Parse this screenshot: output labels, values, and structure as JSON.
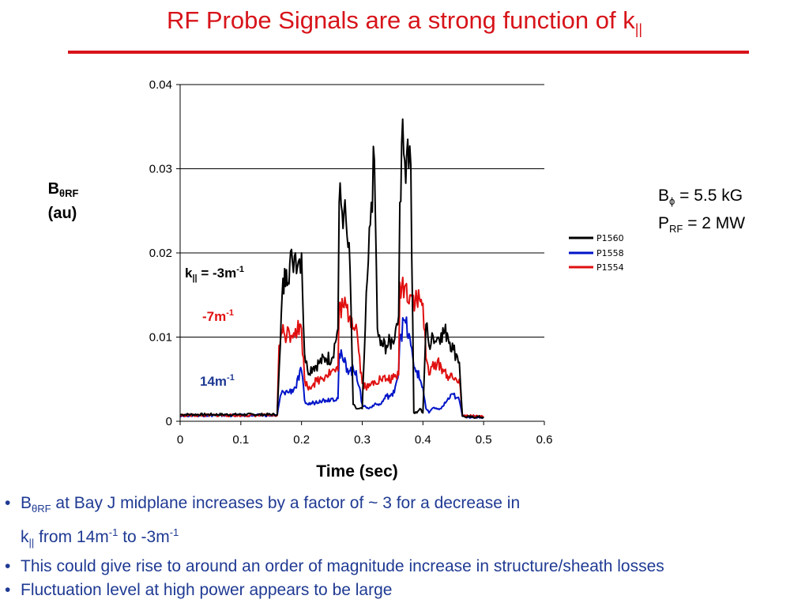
{
  "slide": {
    "title_main": "RF Probe Signals are a strong function of k",
    "title_sub": "||"
  },
  "params": {
    "line1_prefix": "B",
    "line1_sub": "ϕ",
    "line1_suffix": " = 5.5 kG",
    "line2_prefix": "P",
    "line2_sub": "RF",
    "line2_suffix": " = 2 MW"
  },
  "bullets": [
    {
      "b_text": "B",
      "b_sub": "θRF",
      "text1": " at Bay J midplane increases by a factor of ~ 3 for a decrease in",
      "k_text": "k",
      "k_sub": "||",
      "from_text": " from 14m",
      "sup1": "-1",
      "to_text": " to -3m",
      "sup2": "-1"
    },
    {
      "text": "This could give rise to around an order of magnitude increase in structure/sheath losses"
    },
    {
      "text": "Fluctuation level at high power appears to be large"
    }
  ],
  "colors": {
    "title": "#d7141a",
    "bullets": "#1f3a93",
    "P1560": "#000000",
    "P1558": "#0014c8",
    "P1554": "#e01010"
  },
  "chart_data": {
    "type": "line",
    "xlabel": "Time (sec)",
    "ylabel_main": "B",
    "ylabel_sub": "θRF",
    "ylabel_unit": "(au)",
    "xlim": [
      0,
      0.6
    ],
    "ylim": [
      0,
      0.04
    ],
    "xticks": [
      "0",
      "0.1",
      "0.2",
      "0.3",
      "0.4",
      "0.5",
      "0.6"
    ],
    "yticks": [
      "0",
      "0.01",
      "0.02",
      "0.03",
      "0.04"
    ],
    "grid": "horizontal",
    "legend_position": "right",
    "annotations": [
      {
        "text": "k",
        "sub": "||",
        "suffix": " = -3m",
        "sup": "-1",
        "color": "#000000"
      },
      {
        "text": "-7m",
        "sup": "-1",
        "color": "#e01010"
      },
      {
        "text": "14m",
        "sup": "-1",
        "color": "#1f3a93"
      }
    ],
    "series": [
      {
        "name": "P1560",
        "color": "#000000",
        "x": [
          0,
          0.16,
          0.165,
          0.168,
          0.175,
          0.185,
          0.19,
          0.195,
          0.2,
          0.205,
          0.21,
          0.22,
          0.23,
          0.24,
          0.25,
          0.26,
          0.262,
          0.27,
          0.275,
          0.28,
          0.285,
          0.29,
          0.295,
          0.3,
          0.305,
          0.31,
          0.315,
          0.32,
          0.325,
          0.33,
          0.34,
          0.35,
          0.355,
          0.36,
          0.362,
          0.365,
          0.37,
          0.375,
          0.38,
          0.385,
          0.39,
          0.395,
          0.4,
          0.405,
          0.41,
          0.415,
          0.42,
          0.425,
          0.43,
          0.44,
          0.45,
          0.455,
          0.46,
          0.465,
          0.47,
          0.48,
          0.5
        ],
        "y": [
          0.0008,
          0.0008,
          0.009,
          0.015,
          0.018,
          0.019,
          0.02,
          0.019,
          0.02,
          0.008,
          0.006,
          0.0065,
          0.007,
          0.0075,
          0.0075,
          0.011,
          0.026,
          0.025,
          0.022,
          0.018,
          0.002,
          0.0015,
          0.0015,
          0.0015,
          0.011,
          0.019,
          0.026,
          0.031,
          0.011,
          0.009,
          0.009,
          0.0095,
          0.011,
          0.0125,
          0.026,
          0.033,
          0.031,
          0.0335,
          0.0305,
          0.001,
          0.001,
          0.0015,
          0.001,
          0.0115,
          0.009,
          0.0105,
          0.0095,
          0.01,
          0.0105,
          0.0105,
          0.0085,
          0.008,
          0.007,
          0.0006,
          0.0005,
          0.0005,
          0.0005
        ]
      },
      {
        "name": "P1558",
        "color": "#0014c8",
        "x": [
          0,
          0.16,
          0.165,
          0.17,
          0.18,
          0.19,
          0.2,
          0.205,
          0.21,
          0.22,
          0.23,
          0.24,
          0.25,
          0.26,
          0.262,
          0.27,
          0.28,
          0.29,
          0.3,
          0.31,
          0.32,
          0.33,
          0.34,
          0.35,
          0.36,
          0.362,
          0.37,
          0.38,
          0.385,
          0.39,
          0.4,
          0.405,
          0.41,
          0.415,
          0.42,
          0.425,
          0.43,
          0.44,
          0.45,
          0.455,
          0.46,
          0.465,
          0.47,
          0.48,
          0.5
        ],
        "y": [
          0.0007,
          0.0007,
          0.003,
          0.0035,
          0.0035,
          0.004,
          0.006,
          0.0025,
          0.002,
          0.0022,
          0.0025,
          0.0025,
          0.0027,
          0.0027,
          0.008,
          0.007,
          0.006,
          0.006,
          0.002,
          0.0015,
          0.002,
          0.002,
          0.003,
          0.003,
          0.006,
          0.01,
          0.012,
          0.009,
          0.0065,
          0.006,
          0.004,
          0.0015,
          0.001,
          0.0015,
          0.0015,
          0.0015,
          0.0015,
          0.0025,
          0.0032,
          0.0028,
          0.0025,
          0.0006,
          0.0006,
          0.0005,
          0.0005
        ]
      },
      {
        "name": "P1554",
        "color": "#e01010",
        "x": [
          0,
          0.16,
          0.163,
          0.168,
          0.18,
          0.19,
          0.2,
          0.205,
          0.21,
          0.22,
          0.23,
          0.24,
          0.25,
          0.26,
          0.262,
          0.27,
          0.28,
          0.29,
          0.3,
          0.31,
          0.32,
          0.33,
          0.34,
          0.35,
          0.36,
          0.362,
          0.37,
          0.38,
          0.39,
          0.4,
          0.405,
          0.41,
          0.415,
          0.42,
          0.43,
          0.44,
          0.45,
          0.455,
          0.46,
          0.465,
          0.47,
          0.48,
          0.5
        ],
        "y": [
          0.0007,
          0.0007,
          0.009,
          0.0105,
          0.0105,
          0.011,
          0.011,
          0.005,
          0.004,
          0.0045,
          0.005,
          0.0055,
          0.006,
          0.006,
          0.014,
          0.0135,
          0.0125,
          0.0115,
          0.0045,
          0.004,
          0.0048,
          0.005,
          0.005,
          0.005,
          0.0055,
          0.0165,
          0.016,
          0.015,
          0.0145,
          0.014,
          0.0075,
          0.0055,
          0.0065,
          0.007,
          0.0065,
          0.0055,
          0.005,
          0.005,
          0.005,
          0.0007,
          0.0007,
          0.0006,
          0.0006
        ]
      }
    ]
  }
}
